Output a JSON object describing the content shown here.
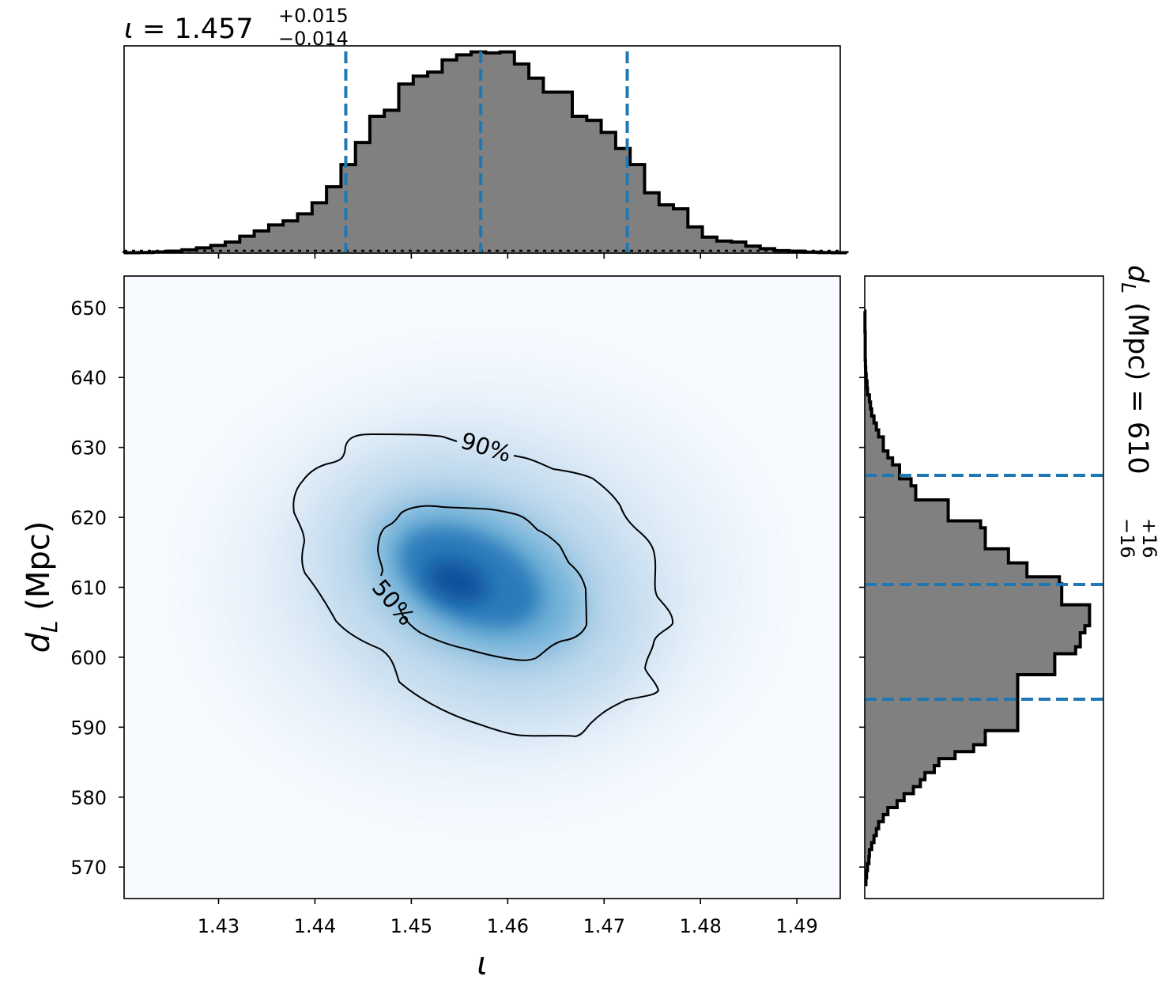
{
  "chart_data": {
    "type": "corner",
    "panels": [
      {
        "name": "inclination-marginal",
        "type": "histogram",
        "parameter": "ι",
        "title": {
          "prefix": "ι = ",
          "value": "1.457",
          "upper": "+0.015",
          "lower": "−0.014"
        },
        "xlim": [
          1.4202,
          1.4945
        ],
        "median": 1.4572,
        "lower_quantile": 1.4432,
        "upper_quantile": 1.4724,
        "bin_edges_start": 1.4202,
        "bin_width": 0.0015,
        "counts": [
          0.002,
          0.003,
          0.006,
          0.01,
          0.016,
          0.026,
          0.038,
          0.055,
          0.084,
          0.11,
          0.14,
          0.16,
          0.195,
          0.25,
          0.33,
          0.44,
          0.55,
          0.68,
          0.71,
          0.84,
          0.88,
          0.9,
          0.96,
          0.985,
          1.0,
          0.995,
          1.0,
          0.94,
          0.87,
          0.8,
          0.8,
          0.68,
          0.66,
          0.6,
          0.52,
          0.44,
          0.3,
          0.24,
          0.22,
          0.13,
          0.08,
          0.06,
          0.055,
          0.035,
          0.022,
          0.012,
          0.01,
          0.005,
          0.003,
          0.002
        ],
        "counts_ylim": [
          0,
          1.03
        ]
      },
      {
        "name": "joint-density",
        "type": "heatmap",
        "xlabel": "ι",
        "ylabel": "d_L (Mpc)",
        "xlim": [
          1.4202,
          1.4945
        ],
        "ylim": [
          565.5,
          654.5
        ],
        "xticks": [
          "1.43",
          "1.44",
          "1.45",
          "1.46",
          "1.47",
          "1.48",
          "1.49"
        ],
        "xtick_values": [
          1.43,
          1.44,
          1.45,
          1.46,
          1.47,
          1.48,
          1.49
        ],
        "yticks": [
          "570",
          "580",
          "590",
          "600",
          "610",
          "620",
          "630",
          "640",
          "650"
        ],
        "ytick_values": [
          570,
          580,
          590,
          600,
          610,
          620,
          630,
          640,
          650
        ],
        "peak": {
          "x": 1.4565,
          "y": 610
        },
        "colormap": "Blues",
        "contours": [
          {
            "label": "50%",
            "label_position": {
              "x": 1.4478,
              "y": 606.5
            },
            "label_rotation_deg": 50
          },
          {
            "label": "90%",
            "label_position": {
              "x": 1.4583,
              "y": 628.5
            },
            "label_rotation_deg": 17
          }
        ]
      },
      {
        "name": "distance-marginal",
        "type": "histogram",
        "orientation": "horizontal",
        "parameter": "d_L",
        "title": {
          "prefix": "(Mpc) = ",
          "value": "610",
          "upper": "+16",
          "lower": "−16"
        },
        "ylim": [
          565.5,
          654.5
        ],
        "median": 610.4,
        "lower_quantile": 594.0,
        "upper_quantile": 626.0,
        "bin_edges_start": 567.5,
        "bin_width": 1.0,
        "counts": [
          0.005,
          0.008,
          0.012,
          0.018,
          0.02,
          0.03,
          0.04,
          0.05,
          0.06,
          0.08,
          0.1,
          0.14,
          0.17,
          0.21,
          0.24,
          0.26,
          0.3,
          0.32,
          0.39,
          0.47,
          0.52,
          0.52,
          0.66,
          0.66,
          0.66,
          0.66,
          0.66,
          0.66,
          0.66,
          0.66,
          0.82,
          0.82,
          0.82,
          0.91,
          0.93,
          0.93,
          0.95,
          0.97,
          0.97,
          0.97,
          0.85,
          0.85,
          0.85,
          0.84,
          0.7,
          0.7,
          0.62,
          0.62,
          0.52,
          0.52,
          0.52,
          0.5,
          0.36,
          0.36,
          0.36,
          0.22,
          0.22,
          0.2,
          0.15,
          0.15,
          0.12,
          0.1,
          0.08,
          0.08,
          0.06,
          0.05,
          0.04,
          0.03,
          0.025,
          0.02,
          0.012,
          0.01,
          0.006,
          0.004,
          0.003,
          0.002,
          0.002,
          0.002,
          0.002,
          0.001,
          0.001,
          0.001
        ],
        "counts_xlim": [
          0,
          1.03
        ]
      }
    ],
    "colors": {
      "hist_fill": "#808080",
      "hist_edge": "#000000",
      "quantile_line": "#1f77b4",
      "contour": "#000000"
    }
  }
}
